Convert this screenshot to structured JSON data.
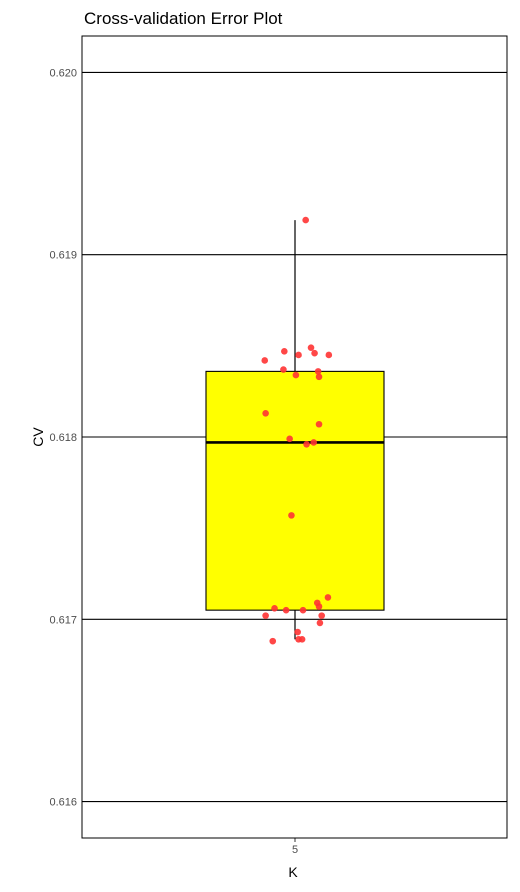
{
  "chart_data": {
    "type": "boxplot",
    "title": "Cross-validation Error Plot",
    "xlabel": "K",
    "ylabel": "CV",
    "categories": [
      "5"
    ],
    "ylim": [
      0.6158,
      0.6202
    ],
    "yticks": [
      0.616,
      0.617,
      0.618,
      0.619,
      0.62
    ],
    "ytick_labels": [
      "0.616",
      "0.617",
      "0.618",
      "0.619",
      "0.620"
    ],
    "grid": "horizontal major lines",
    "colors": {
      "box_fill": "#ffff00",
      "points": "#ff3333",
      "lines": "#000000"
    },
    "box": {
      "category": "5",
      "q1": 0.61705,
      "median": 0.61797,
      "q3": 0.61836,
      "whisker_low": 0.61689,
      "whisker_high": 0.61919
    },
    "points": [
      {
        "jitter": 0.12,
        "y": 0.61919
      },
      {
        "jitter": 0.18,
        "y": 0.61849
      },
      {
        "jitter": -0.12,
        "y": 0.61847
      },
      {
        "jitter": 0.04,
        "y": 0.61845
      },
      {
        "jitter": 0.22,
        "y": 0.61846
      },
      {
        "jitter": 0.38,
        "y": 0.61845
      },
      {
        "jitter": -0.34,
        "y": 0.61842
      },
      {
        "jitter": -0.13,
        "y": 0.61837
      },
      {
        "jitter": 0.26,
        "y": 0.61836
      },
      {
        "jitter": 0.01,
        "y": 0.61834
      },
      {
        "jitter": 0.27,
        "y": 0.61833
      },
      {
        "jitter": -0.33,
        "y": 0.61813
      },
      {
        "jitter": 0.27,
        "y": 0.61807
      },
      {
        "jitter": -0.06,
        "y": 0.61799
      },
      {
        "jitter": 0.21,
        "y": 0.61797
      },
      {
        "jitter": 0.13,
        "y": 0.61796
      },
      {
        "jitter": -0.04,
        "y": 0.61757
      },
      {
        "jitter": 0.37,
        "y": 0.61712
      },
      {
        "jitter": 0.25,
        "y": 0.61709
      },
      {
        "jitter": 0.27,
        "y": 0.61707
      },
      {
        "jitter": -0.23,
        "y": 0.61706
      },
      {
        "jitter": -0.1,
        "y": 0.61705
      },
      {
        "jitter": 0.09,
        "y": 0.61705
      },
      {
        "jitter": -0.33,
        "y": 0.61702
      },
      {
        "jitter": 0.3,
        "y": 0.61702
      },
      {
        "jitter": 0.28,
        "y": 0.61698
      },
      {
        "jitter": 0.03,
        "y": 0.61693
      },
      {
        "jitter": 0.04,
        "y": 0.61689
      },
      {
        "jitter": 0.08,
        "y": 0.61689
      },
      {
        "jitter": -0.25,
        "y": 0.61688
      }
    ]
  }
}
